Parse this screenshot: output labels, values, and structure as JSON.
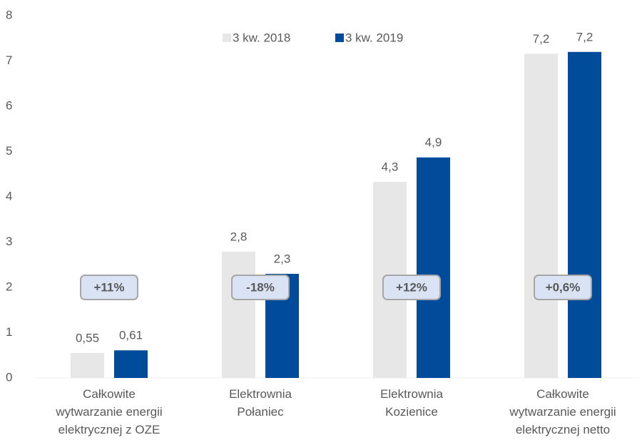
{
  "chart_data": {
    "type": "bar",
    "categories": [
      "Całkowite\nwytwarzanie energii\nelektrycznej z OZE",
      "Elektrownia\nPołaniec",
      "Elektrownia\nKozienice",
      "Całkowite\nwytwarzanie energii\nelektrycznej netto"
    ],
    "series": [
      {
        "name": "3 kw. 2018",
        "color": "#e7e7e7",
        "values": [
          0.55,
          2.79,
          4.33,
          7.16
        ],
        "value_labels": [
          "0,55",
          "2,8",
          "4,3",
          "7,2"
        ]
      },
      {
        "name": "3 kw. 2019",
        "color": "#004c9a",
        "values": [
          0.61,
          2.3,
          4.87,
          7.2
        ],
        "value_labels": [
          "0,61",
          "2,3",
          "4,9",
          "7,2"
        ]
      }
    ],
    "annotations": [
      "+11%",
      "-18%",
      "+12%",
      "+0,6%"
    ],
    "ylim": [
      0,
      8
    ],
    "yticks": [
      0,
      1,
      2,
      3,
      4,
      5,
      6,
      7,
      8
    ],
    "grid": false,
    "legend": "top"
  }
}
